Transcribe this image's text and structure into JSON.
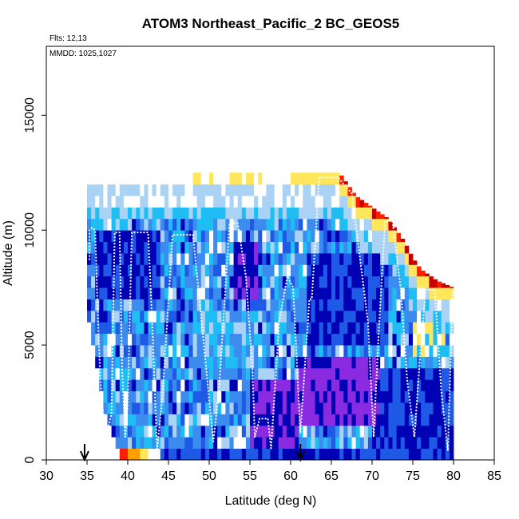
{
  "chart_data": {
    "type": "heatmap",
    "title": "ATOM3 Northeast_Pacific_2 BC_GEOS5",
    "annotations": {
      "flights": "Flts: 12,13",
      "dates": "MMDD: 1025,1027"
    },
    "xlabel": "Latitude (deg N)",
    "ylabel": "Altitude (m)",
    "xlim": [
      30,
      85
    ],
    "ylim": [
      0,
      18000
    ],
    "x_ticks": [
      "30",
      "35",
      "40",
      "45",
      "50",
      "55",
      "60",
      "65",
      "70",
      "75",
      "80",
      "85"
    ],
    "y_ticks": [
      "0",
      "5000",
      "10000",
      "15000"
    ],
    "arrow_markers_lat": [
      34.7,
      61.2
    ],
    "colors": {
      "purple": "#8a2be2",
      "navy": "#0000b4",
      "blue": "#1e5ae6",
      "mid_blue": "#3c8cf0",
      "sky": "#1ebef5",
      "pale_blue": "#aad2f5",
      "white": "#ffffff",
      "yellow": "#ffe65a",
      "orange": "#ffa000",
      "red": "#ff1e00",
      "dark_red": "#c80000"
    },
    "grid": {
      "lat_start": 35,
      "lat_step": 0.5,
      "alt_step": 500,
      "top_altitude_by_lat": [
        [
          35,
          12500
        ],
        [
          45,
          12500
        ],
        [
          51,
          12500
        ],
        [
          58,
          12500
        ],
        [
          66,
          12500
        ],
        [
          67,
          12000
        ],
        [
          68,
          11500
        ],
        [
          70,
          11000
        ],
        [
          72,
          10500
        ],
        [
          74,
          9500
        ],
        [
          75,
          8800
        ],
        [
          76,
          8300
        ],
        [
          78,
          7800
        ],
        [
          80,
          7500
        ]
      ],
      "bottom_altitude_by_lat": [
        [
          35,
          6500
        ],
        [
          36,
          4500
        ],
        [
          37,
          2500
        ],
        [
          38,
          1500
        ],
        [
          38.5,
          1000
        ],
        [
          39,
          500
        ],
        [
          40,
          0
        ],
        [
          80,
          0
        ]
      ]
    },
    "flight_track": [
      [
        35.3,
        8700
      ],
      [
        35.3,
        10000
      ],
      [
        35.6,
        10100
      ],
      [
        36.0,
        10000
      ],
      [
        36.3,
        6500
      ],
      [
        36.7,
        3000
      ],
      [
        37.3,
        1000
      ],
      [
        38.0,
        2000
      ],
      [
        38.2,
        6000
      ],
      [
        38.4,
        9900
      ],
      [
        39.0,
        9900
      ],
      [
        39.3,
        4000
      ],
      [
        39.7,
        1000
      ],
      [
        40.0,
        2500
      ],
      [
        40.5,
        9900
      ],
      [
        42.5,
        9900
      ],
      [
        43.0,
        6000
      ],
      [
        43.6,
        400
      ],
      [
        44.3,
        3000
      ],
      [
        45.5,
        9800
      ],
      [
        48.0,
        9800
      ],
      [
        48.8,
        7000
      ],
      [
        50.5,
        800
      ],
      [
        51.2,
        3000
      ],
      [
        52.5,
        10300
      ],
      [
        53.5,
        10300
      ],
      [
        54.5,
        8000
      ],
      [
        55.3,
        4000
      ],
      [
        55.6,
        1000
      ],
      [
        56.2,
        1800
      ],
      [
        57.2,
        1800
      ],
      [
        57.6,
        500
      ],
      [
        58.6,
        6000
      ],
      [
        59.6,
        8000
      ],
      [
        60.3,
        7500
      ],
      [
        61.2,
        1200
      ],
      [
        62.3,
        7000
      ],
      [
        62.6,
        7000
      ],
      [
        63.5,
        12300
      ],
      [
        65.8,
        12300
      ],
      [
        67.5,
        11600
      ],
      [
        69.5,
        6000
      ],
      [
        70.2,
        1000
      ],
      [
        70.8,
        5500
      ],
      [
        71.6,
        10400
      ],
      [
        72.5,
        10400
      ],
      [
        73.5,
        7500
      ],
      [
        74.3,
        3500
      ],
      [
        75.2,
        1000
      ],
      [
        76.0,
        5000
      ],
      [
        76.6,
        7400
      ],
      [
        77.7,
        7400
      ],
      [
        78.5,
        3000
      ],
      [
        79.3,
        400
      ],
      [
        79.9,
        7400
      ]
    ]
  }
}
